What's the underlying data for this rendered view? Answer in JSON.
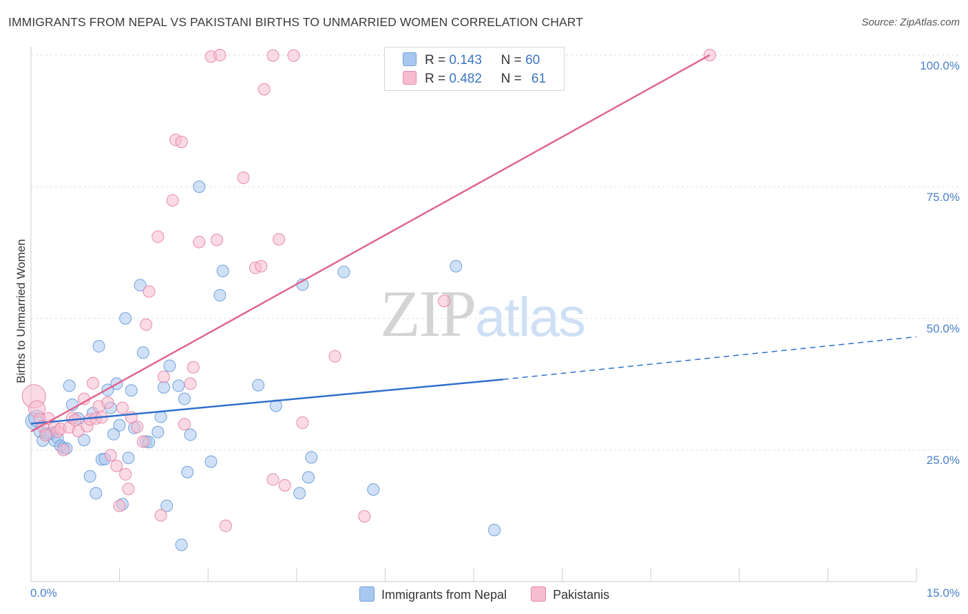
{
  "title": "IMMIGRANTS FROM NEPAL VS PAKISTANI BIRTHS TO UNMARRIED WOMEN CORRELATION CHART",
  "source": "Source: ZipAtlas.com",
  "watermark": {
    "zip": "ZIP",
    "atlas": "atlas"
  },
  "legend_box": {
    "rows": [
      {
        "r_label": "R =",
        "r_value": "0.143",
        "n_label": "N =",
        "n_value": "60"
      },
      {
        "r_label": "R =",
        "r_value": "0.482",
        "n_label": "N =",
        "n_value": "61"
      }
    ]
  },
  "bottom_legend": [
    "Immigrants from Nepal",
    "Pakistanis"
  ],
  "colors": {
    "nepal_fill": "#a9c8f0",
    "nepal_stroke": "#6f9fd8",
    "nepal_line": "#2f6fcc",
    "pak_fill": "#f6bcd0",
    "pak_stroke": "#e889aa",
    "pak_line": "#e0648f",
    "tick_label": "#4a7fcb",
    "grid": "#dddddd"
  },
  "chart_data": {
    "type": "scatter",
    "title": "IMMIGRANTS FROM NEPAL VS PAKISTANI BIRTHS TO UNMARRIED WOMEN CORRELATION CHART",
    "xlabel": "",
    "ylabel": "Births to Unmarried Women",
    "xlim": [
      0,
      15
    ],
    "ylim": [
      0,
      100
    ],
    "x_tick_labels": [
      "0.0%",
      "15.0%"
    ],
    "y_tick_labels": [
      "25.0%",
      "50.0%",
      "75.0%",
      "100.0%"
    ],
    "y_ticks": [
      25,
      50,
      75,
      100
    ],
    "grid": true,
    "legend_position": "top-center",
    "series": [
      {
        "name": "Immigrants from Nepal",
        "r": 0.143,
        "n": 60,
        "trend": {
          "x0": 0.0,
          "y0": 30.0,
          "x1": 8.0,
          "y1": 38.4,
          "dashed_to_x": 15.0,
          "dashed_to_y": 46.5
        },
        "points": [
          [
            0.05,
            30.5
          ],
          [
            0.1,
            31.0
          ],
          [
            0.15,
            28.5
          ],
          [
            0.2,
            26.8
          ],
          [
            0.25,
            28.2
          ],
          [
            0.35,
            28.3
          ],
          [
            0.4,
            26.8
          ],
          [
            0.45,
            27.3
          ],
          [
            0.5,
            25.8
          ],
          [
            0.55,
            25.4
          ],
          [
            0.65,
            37.2
          ],
          [
            0.7,
            33.6
          ],
          [
            0.8,
            31.0
          ],
          [
            0.9,
            26.9
          ],
          [
            1.0,
            20.0
          ],
          [
            1.05,
            32.0
          ],
          [
            1.1,
            16.8
          ],
          [
            1.15,
            44.7
          ],
          [
            1.2,
            23.2
          ],
          [
            1.25,
            23.3
          ],
          [
            1.3,
            36.4
          ],
          [
            1.35,
            33.0
          ],
          [
            1.4,
            28.0
          ],
          [
            1.45,
            37.6
          ],
          [
            1.5,
            29.7
          ],
          [
            1.55,
            14.7
          ],
          [
            1.6,
            50.0
          ],
          [
            1.65,
            23.5
          ],
          [
            1.7,
            36.3
          ],
          [
            1.75,
            29.2
          ],
          [
            1.85,
            56.3
          ],
          [
            1.9,
            43.5
          ],
          [
            1.95,
            26.6
          ],
          [
            2.0,
            26.5
          ],
          [
            2.15,
            28.4
          ],
          [
            2.2,
            31.3
          ],
          [
            2.25,
            36.9
          ],
          [
            2.3,
            14.4
          ],
          [
            2.35,
            41.0
          ],
          [
            2.5,
            37.2
          ],
          [
            2.55,
            7.0
          ],
          [
            2.6,
            34.7
          ],
          [
            2.65,
            20.8
          ],
          [
            2.7,
            27.9
          ],
          [
            2.85,
            75.0
          ],
          [
            3.05,
            22.8
          ],
          [
            3.2,
            54.4
          ],
          [
            3.25,
            59.0
          ],
          [
            3.85,
            37.3
          ],
          [
            4.15,
            33.4
          ],
          [
            4.55,
            16.8
          ],
          [
            4.6,
            56.4
          ],
          [
            4.7,
            19.8
          ],
          [
            4.75,
            23.6
          ],
          [
            5.3,
            58.8
          ],
          [
            5.8,
            17.5
          ],
          [
            7.2,
            59.9
          ],
          [
            7.85,
            9.8
          ],
          [
            0.3,
            28.0
          ],
          [
            0.6,
            25.3
          ]
        ]
      },
      {
        "name": "Pakistanis",
        "r": 0.482,
        "n": 61,
        "trend": {
          "x0": 0.0,
          "y0": 28.5,
          "x1": 11.5,
          "y1": 100.0
        },
        "points": [
          [
            0.05,
            35.2
          ],
          [
            0.1,
            32.8
          ],
          [
            0.15,
            30.9
          ],
          [
            0.2,
            29.5
          ],
          [
            0.25,
            27.8
          ],
          [
            0.3,
            31.0
          ],
          [
            0.4,
            29.4
          ],
          [
            0.45,
            28.5
          ],
          [
            0.5,
            29.0
          ],
          [
            0.55,
            25.0
          ],
          [
            0.65,
            29.3
          ],
          [
            0.7,
            31.1
          ],
          [
            0.75,
            30.7
          ],
          [
            0.8,
            28.6
          ],
          [
            0.9,
            34.7
          ],
          [
            0.95,
            29.5
          ],
          [
            1.0,
            30.8
          ],
          [
            1.05,
            37.7
          ],
          [
            1.1,
            31.0
          ],
          [
            1.15,
            33.3
          ],
          [
            1.2,
            31.2
          ],
          [
            1.3,
            34.0
          ],
          [
            1.35,
            24.0
          ],
          [
            1.45,
            22.0
          ],
          [
            1.5,
            14.4
          ],
          [
            1.55,
            33.0
          ],
          [
            1.6,
            20.4
          ],
          [
            1.65,
            17.6
          ],
          [
            1.7,
            31.2
          ],
          [
            1.8,
            29.4
          ],
          [
            1.9,
            26.6
          ],
          [
            1.95,
            48.8
          ],
          [
            2.0,
            55.1
          ],
          [
            2.15,
            65.5
          ],
          [
            2.2,
            12.6
          ],
          [
            2.25,
            38.9
          ],
          [
            2.4,
            72.4
          ],
          [
            2.45,
            83.9
          ],
          [
            2.55,
            83.5
          ],
          [
            2.6,
            29.9
          ],
          [
            2.7,
            37.6
          ],
          [
            2.75,
            40.7
          ],
          [
            2.85,
            64.5
          ],
          [
            3.05,
            99.7
          ],
          [
            3.2,
            100.0
          ],
          [
            3.15,
            64.9
          ],
          [
            3.3,
            10.6
          ],
          [
            3.6,
            76.7
          ],
          [
            3.8,
            59.6
          ],
          [
            3.9,
            59.9
          ],
          [
            3.95,
            93.5
          ],
          [
            4.1,
            99.9
          ],
          [
            4.2,
            65.0
          ],
          [
            4.1,
            19.4
          ],
          [
            4.3,
            18.3
          ],
          [
            4.45,
            99.9
          ],
          [
            4.6,
            30.2
          ],
          [
            5.15,
            42.8
          ],
          [
            5.65,
            12.4
          ],
          [
            7.0,
            53.3
          ],
          [
            11.5,
            100.0
          ]
        ]
      }
    ]
  }
}
